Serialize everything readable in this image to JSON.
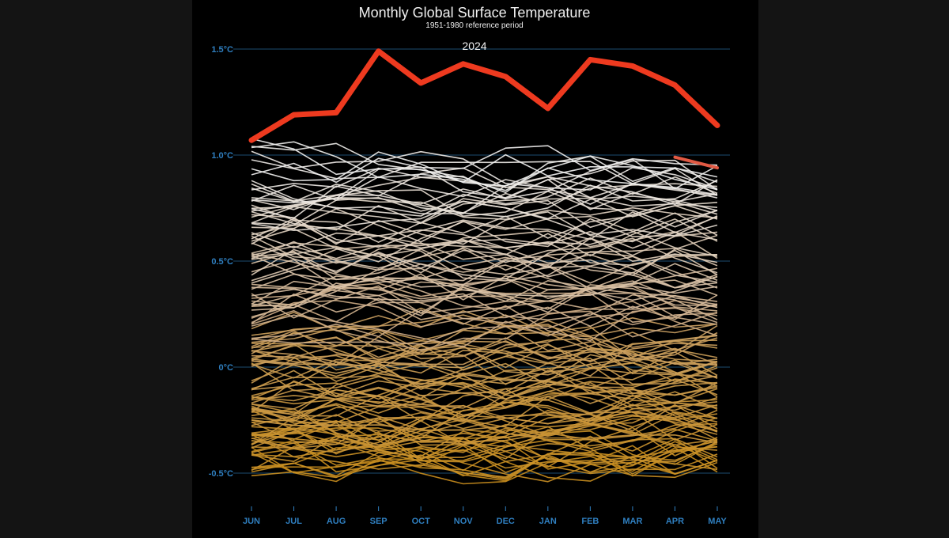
{
  "chart_data": {
    "type": "line",
    "title": "Monthly Global Surface Temperature",
    "subtitle": "1951-1980 reference period",
    "highlight_label": "2024",
    "x": [
      "JUN",
      "JUL",
      "AUG",
      "SEP",
      "OCT",
      "NOV",
      "DEC",
      "JAN",
      "FEB",
      "MAR",
      "APR",
      "MAY"
    ],
    "ylim": [
      -0.62,
      1.55
    ],
    "yticks": [
      {
        "value": 1.5,
        "label": "1.5°C"
      },
      {
        "value": 1.0,
        "label": "1.0°C"
      },
      {
        "value": 0.5,
        "label": "0.5°C"
      },
      {
        "value": 0.0,
        "label": "0°C"
      },
      {
        "value": -0.5,
        "label": "-0.5°C"
      }
    ],
    "grid": true,
    "colors": {
      "highlight": "#ee3a1f",
      "warm_end": "#f2f2f2",
      "cool_end": "#c98d1c",
      "grid": "#12324a",
      "ticks": "#2f7fc0",
      "background": "#000000"
    },
    "highlight_series": {
      "name": "2024",
      "values": [
        1.07,
        1.19,
        1.2,
        1.49,
        1.34,
        1.43,
        1.37,
        1.22,
        1.45,
        1.42,
        1.33,
        1.14
      ]
    },
    "highlight_prev": {
      "values": [
        null,
        null,
        null,
        null,
        null,
        null,
        null,
        null,
        null,
        null,
        0.99,
        0.94
      ]
    },
    "series_count": 145,
    "start_anomaly": -0.45,
    "end_anomaly": 0.98
  }
}
